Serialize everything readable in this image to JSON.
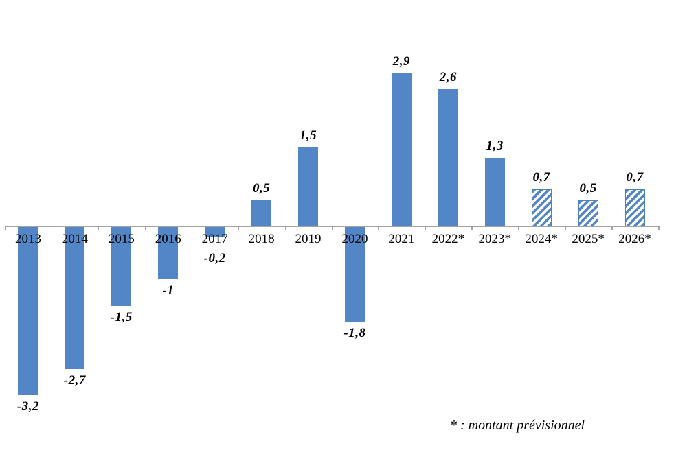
{
  "chart_data": {
    "type": "bar",
    "categories": [
      "2013",
      "2014",
      "2015",
      "2016",
      "2017",
      "2018",
      "2019",
      "2020",
      "2021",
      "2022*",
      "2023*",
      "2024*",
      "2025*",
      "2026*"
    ],
    "values": [
      -3.2,
      -2.7,
      -1.5,
      -1,
      -0.2,
      0.5,
      1.5,
      -1.8,
      2.9,
      2.6,
      1.3,
      0.7,
      0.5,
      0.7
    ],
    "value_labels": [
      "-3,2",
      "-2,7",
      "-1,5",
      "-1",
      "-0,2",
      "0,5",
      "1,5",
      "-1,8",
      "2,9",
      "2,6",
      "1,3",
      "0,7",
      "0,5",
      "0,7"
    ],
    "hatched": [
      false,
      false,
      false,
      false,
      false,
      false,
      false,
      false,
      false,
      false,
      false,
      true,
      true,
      true
    ],
    "title": "",
    "xlabel": "",
    "ylabel": "",
    "ylim": [
      -3.5,
      3.2
    ],
    "grid": false,
    "legend": "none",
    "bar_color": "#5286c6",
    "hatch_border_color": "#4f81bd",
    "axis_color": "#a3a3a3",
    "footnote": "* : montant prévisionnel"
  }
}
